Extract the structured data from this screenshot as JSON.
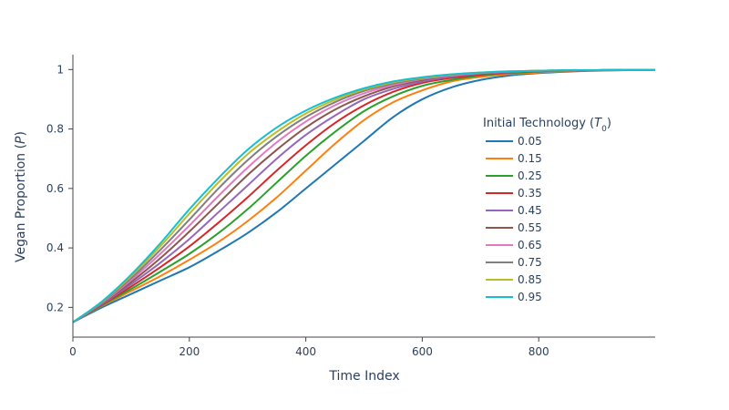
{
  "chart_data": {
    "type": "line",
    "xlabel": "Time Index",
    "ylabel": {
      "text": "Vegan Proportion (",
      "sym": "P",
      "close": ")"
    },
    "xlim": [
      0,
      1000
    ],
    "ylim": [
      0.1,
      1.05
    ],
    "x_ticks": [
      0,
      200,
      400,
      600,
      800
    ],
    "y_ticks": [
      0.2,
      0.4,
      0.6,
      0.8,
      1
    ],
    "y_tick_labels": [
      "0.2",
      "0.4",
      "0.6",
      "0.8",
      "1"
    ],
    "x_tick_labels": [
      "0",
      "200",
      "400",
      "600",
      "800"
    ],
    "grid": false,
    "legend": {
      "position": "right",
      "title": {
        "text": "Initial Technology (",
        "sym": "T",
        "sub": "0",
        "close": ")"
      }
    },
    "x": [
      0,
      50,
      100,
      150,
      200,
      250,
      300,
      350,
      400,
      450,
      500,
      550,
      600,
      650,
      700,
      750,
      800,
      850,
      900,
      950,
      1000
    ],
    "series": [
      {
        "name": "0.05",
        "color": "#1f77b4",
        "values": [
          0.15,
          0.2,
          0.245,
          0.29,
          0.335,
          0.39,
          0.45,
          0.52,
          0.6,
          0.68,
          0.76,
          0.84,
          0.9,
          0.94,
          0.965,
          0.98,
          0.988,
          0.993,
          0.996,
          0.998,
          0.999
        ]
      },
      {
        "name": "0.15",
        "color": "#ff7f0e",
        "values": [
          0.15,
          0.205,
          0.255,
          0.305,
          0.36,
          0.42,
          0.49,
          0.57,
          0.66,
          0.75,
          0.83,
          0.89,
          0.93,
          0.96,
          0.975,
          0.985,
          0.99,
          0.995,
          0.997,
          0.998,
          0.999
        ]
      },
      {
        "name": "0.25",
        "color": "#2ca02c",
        "values": [
          0.15,
          0.207,
          0.262,
          0.32,
          0.38,
          0.45,
          0.53,
          0.62,
          0.71,
          0.79,
          0.86,
          0.91,
          0.945,
          0.965,
          0.98,
          0.988,
          0.993,
          0.996,
          0.998,
          0.999,
          0.999
        ]
      },
      {
        "name": "0.35",
        "color": "#d62728",
        "values": [
          0.15,
          0.209,
          0.27,
          0.335,
          0.405,
          0.485,
          0.57,
          0.66,
          0.745,
          0.82,
          0.88,
          0.925,
          0.955,
          0.972,
          0.983,
          0.99,
          0.994,
          0.997,
          0.998,
          0.999,
          0.999
        ]
      },
      {
        "name": "0.45",
        "color": "#9467bd",
        "values": [
          0.15,
          0.211,
          0.278,
          0.35,
          0.43,
          0.52,
          0.61,
          0.7,
          0.78,
          0.845,
          0.9,
          0.935,
          0.96,
          0.976,
          0.986,
          0.991,
          0.995,
          0.997,
          0.998,
          0.999,
          0.999
        ]
      },
      {
        "name": "0.55",
        "color": "#8c564b",
        "values": [
          0.15,
          0.213,
          0.285,
          0.365,
          0.455,
          0.55,
          0.645,
          0.73,
          0.805,
          0.865,
          0.91,
          0.943,
          0.965,
          0.979,
          0.987,
          0.992,
          0.995,
          0.997,
          0.998,
          0.999,
          0.999
        ]
      },
      {
        "name": "0.65",
        "color": "#e377c2",
        "values": [
          0.15,
          0.215,
          0.292,
          0.38,
          0.475,
          0.575,
          0.67,
          0.755,
          0.825,
          0.88,
          0.92,
          0.948,
          0.968,
          0.98,
          0.988,
          0.993,
          0.996,
          0.997,
          0.998,
          0.999,
          0.999
        ]
      },
      {
        "name": "0.75",
        "color": "#7f7f7f",
        "values": [
          0.15,
          0.217,
          0.298,
          0.393,
          0.495,
          0.6,
          0.695,
          0.775,
          0.84,
          0.89,
          0.928,
          0.953,
          0.97,
          0.982,
          0.989,
          0.993,
          0.996,
          0.997,
          0.998,
          0.999,
          0.999
        ]
      },
      {
        "name": "0.85",
        "color": "#bcbd22",
        "values": [
          0.15,
          0.219,
          0.305,
          0.405,
          0.515,
          0.62,
          0.715,
          0.79,
          0.852,
          0.898,
          0.933,
          0.957,
          0.972,
          0.983,
          0.99,
          0.994,
          0.996,
          0.998,
          0.998,
          0.999,
          0.999
        ]
      },
      {
        "name": "0.95",
        "color": "#17becf",
        "values": [
          0.15,
          0.22,
          0.31,
          0.415,
          0.53,
          0.635,
          0.73,
          0.805,
          0.862,
          0.905,
          0.937,
          0.96,
          0.974,
          0.984,
          0.99,
          0.994,
          0.996,
          0.998,
          0.998,
          0.999,
          0.999
        ]
      }
    ]
  }
}
